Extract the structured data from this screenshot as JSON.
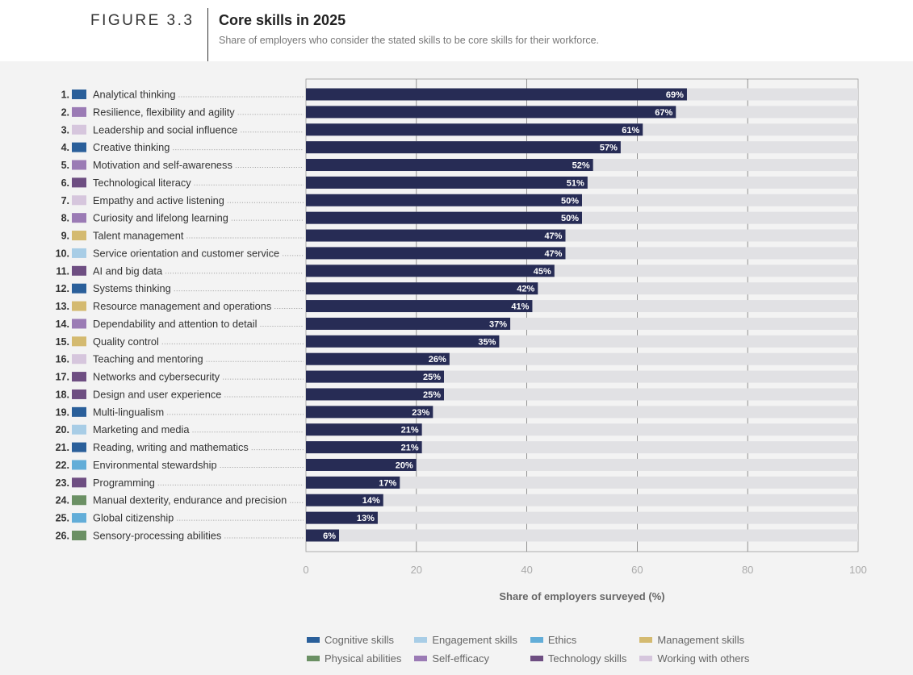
{
  "header": {
    "figure_label": "FIGURE 3.3",
    "title": "Core skills in 2025",
    "subtitle": "Share of employers who consider the stated skills to be core skills for their workforce."
  },
  "categories_colors": {
    "Cognitive skills": "#2a5f9a",
    "Engagement skills": "#a8cde6",
    "Ethics": "#62add8",
    "Management skills": "#d4ba70",
    "Physical abilities": "#6b9064",
    "Self-efficacy": "#9b7bb5",
    "Technology skills": "#6e4e82",
    "Working with others": "#d6c6dd"
  },
  "chart_data": {
    "type": "bar",
    "orientation": "horizontal",
    "xlabel": "Share of employers surveyed (%)",
    "xlim": [
      0,
      100
    ],
    "xticks": [
      0,
      20,
      40,
      60,
      80,
      100
    ],
    "grid": true,
    "bar_color": "#272c55",
    "track_color": "#e1e1e4",
    "items": [
      {
        "rank": "1.",
        "label": "Analytical thinking",
        "value": 69,
        "value_label": "69%",
        "category": "Cognitive skills"
      },
      {
        "rank": "2.",
        "label": "Resilience, flexibility and agility",
        "value": 67,
        "value_label": "67%",
        "category": "Self-efficacy"
      },
      {
        "rank": "3.",
        "label": "Leadership and social influence",
        "value": 61,
        "value_label": "61%",
        "category": "Working with others"
      },
      {
        "rank": "4.",
        "label": "Creative thinking",
        "value": 57,
        "value_label": "57%",
        "category": "Cognitive skills"
      },
      {
        "rank": "5.",
        "label": "Motivation and self-awareness",
        "value": 52,
        "value_label": "52%",
        "category": "Self-efficacy"
      },
      {
        "rank": "6.",
        "label": "Technological literacy",
        "value": 51,
        "value_label": "51%",
        "category": "Technology skills"
      },
      {
        "rank": "7.",
        "label": "Empathy and active listening",
        "value": 50,
        "value_label": "50%",
        "category": "Working with others"
      },
      {
        "rank": "8.",
        "label": "Curiosity and lifelong learning",
        "value": 50,
        "value_label": "50%",
        "category": "Self-efficacy"
      },
      {
        "rank": "9.",
        "label": "Talent management",
        "value": 47,
        "value_label": "47%",
        "category": "Management skills"
      },
      {
        "rank": "10.",
        "label": "Service orientation and customer service",
        "value": 47,
        "value_label": "47%",
        "category": "Engagement skills"
      },
      {
        "rank": "11.",
        "label": "AI and big data",
        "value": 45,
        "value_label": "45%",
        "category": "Technology skills"
      },
      {
        "rank": "12.",
        "label": "Systems thinking",
        "value": 42,
        "value_label": "42%",
        "category": "Cognitive skills"
      },
      {
        "rank": "13.",
        "label": "Resource management and operations",
        "value": 41,
        "value_label": "41%",
        "category": "Management skills"
      },
      {
        "rank": "14.",
        "label": "Dependability and attention to detail",
        "value": 37,
        "value_label": "37%",
        "category": "Self-efficacy"
      },
      {
        "rank": "15.",
        "label": "Quality control",
        "value": 35,
        "value_label": "35%",
        "category": "Management skills"
      },
      {
        "rank": "16.",
        "label": "Teaching and mentoring",
        "value": 26,
        "value_label": "26%",
        "category": "Working with others"
      },
      {
        "rank": "17.",
        "label": "Networks and cybersecurity",
        "value": 25,
        "value_label": "25%",
        "category": "Technology skills"
      },
      {
        "rank": "18.",
        "label": "Design and user experience",
        "value": 25,
        "value_label": "25%",
        "category": "Technology skills"
      },
      {
        "rank": "19.",
        "label": "Multi-lingualism",
        "value": 23,
        "value_label": "23%",
        "category": "Cognitive skills"
      },
      {
        "rank": "20.",
        "label": "Marketing and media",
        "value": 21,
        "value_label": "21%",
        "category": "Engagement skills"
      },
      {
        "rank": "21.",
        "label": "Reading, writing and mathematics",
        "value": 21,
        "value_label": "21%",
        "category": "Cognitive skills"
      },
      {
        "rank": "22.",
        "label": "Environmental stewardship",
        "value": 20,
        "value_label": "20%",
        "category": "Ethics"
      },
      {
        "rank": "23.",
        "label": "Programming",
        "value": 17,
        "value_label": "17%",
        "category": "Technology skills"
      },
      {
        "rank": "24.",
        "label": "Manual dexterity, endurance and precision",
        "value": 14,
        "value_label": "14%",
        "category": "Physical abilities"
      },
      {
        "rank": "25.",
        "label": "Global citizenship",
        "value": 13,
        "value_label": "13%",
        "category": "Ethics"
      },
      {
        "rank": "26.",
        "label": "Sensory-processing abilities",
        "value": 6,
        "value_label": "6%",
        "category": "Physical abilities"
      }
    ]
  },
  "legend": [
    {
      "label": "Cognitive skills",
      "color": "#2a5f9a"
    },
    {
      "label": "Engagement skills",
      "color": "#a8cde6"
    },
    {
      "label": "Ethics",
      "color": "#62add8"
    },
    {
      "label": "Management skills",
      "color": "#d4ba70"
    },
    {
      "label": "Physical abilities",
      "color": "#6b9064"
    },
    {
      "label": "Self-efficacy",
      "color": "#9b7bb5"
    },
    {
      "label": "Technology skills",
      "color": "#6e4e82"
    },
    {
      "label": "Working with others",
      "color": "#d6c6dd"
    }
  ]
}
